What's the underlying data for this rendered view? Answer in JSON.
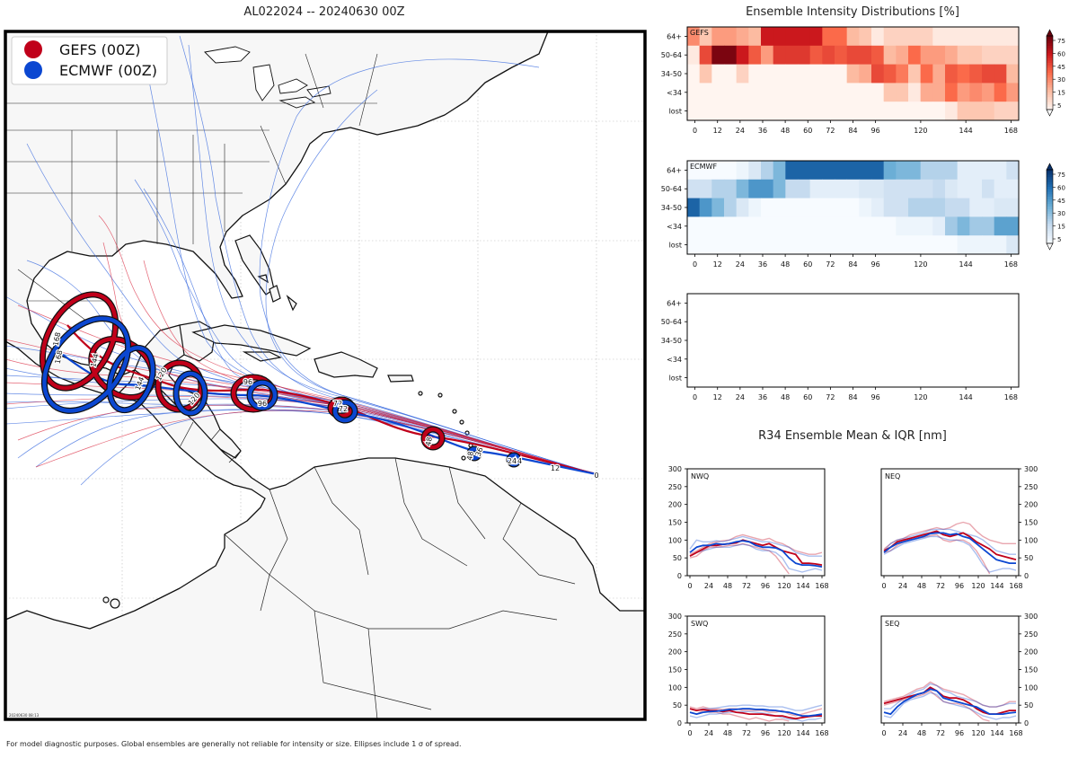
{
  "figure": {
    "title": "AL022024 -- 20240630 00Z",
    "footnote": "For model diagnostic purposes. Global ensembles are generally not reliable for intensity or size. Ellipses include 1 σ of spread.",
    "timestamp": "20240630 08:13"
  },
  "colors": {
    "gefs": "#c0001a",
    "ecmwf": "#0b47d1",
    "land": "#f7f7f7",
    "ocean": "#ffffff"
  },
  "chart_data": [
    {
      "id": "track-map",
      "type": "map",
      "legend": [
        {
          "label": "GEFS (00Z)",
          "color": "#c0001a"
        },
        {
          "label": "ECMWF (00Z)",
          "color": "#0b47d1"
        }
      ],
      "legend_position": "top-left",
      "gefs_mean_labels": [
        {
          "hour": "0"
        },
        {
          "hour": "24"
        },
        {
          "hour": "48"
        },
        {
          "hour": "72"
        },
        {
          "hour": "96"
        },
        {
          "hour": "120"
        },
        {
          "hour": "144"
        },
        {
          "hour": "168"
        }
      ],
      "ecmwf_mean_labels": [
        {
          "hour": "0"
        },
        {
          "hour": "12"
        },
        {
          "hour": "24"
        },
        {
          "hour": "36"
        },
        {
          "hour": "48"
        },
        {
          "hour": "72"
        },
        {
          "hour": "96"
        },
        {
          "hour": "120"
        },
        {
          "hour": "144"
        },
        {
          "hour": "168"
        }
      ]
    },
    {
      "id": "intensity-distributions",
      "type": "heatmap",
      "title": "Ensemble Intensity Distributions [%]",
      "x_ticks": [
        "0",
        "12",
        "24",
        "36",
        "48",
        "60",
        "72",
        "84",
        "96",
        "120",
        "144",
        "168"
      ],
      "rows": [
        "64+",
        "50-64",
        "34-50",
        "<34",
        "lost"
      ],
      "colorbar_ticks": [
        "75",
        "60",
        "45",
        "30",
        "15",
        "5"
      ],
      "panels": [
        {
          "name": "GEFS",
          "cmap": "reds",
          "grid": [
            [
              40,
              20,
              35,
              35,
              30,
              25,
              75,
              75,
              75,
              75,
              75,
              50,
              50,
              25,
              20,
              5,
              15,
              15,
              15,
              15,
              5,
              5,
              5,
              5,
              5,
              5,
              5
            ],
            [
              5,
              60,
              95,
              95,
              75,
              55,
              35,
              65,
              65,
              65,
              55,
              60,
              55,
              60,
              60,
              55,
              25,
              30,
              50,
              35,
              35,
              30,
              20,
              20,
              15,
              15,
              15
            ],
            [
              0,
              20,
              0,
              0,
              15,
              0,
              0,
              0,
              0,
              0,
              0,
              0,
              0,
              25,
              30,
              60,
              55,
              45,
              20,
              50,
              30,
              55,
              50,
              55,
              60,
              60,
              25
            ],
            [
              0,
              0,
              0,
              0,
              0,
              0,
              0,
              0,
              0,
              0,
              0,
              0,
              0,
              0,
              0,
              0,
              20,
              20,
              5,
              30,
              30,
              50,
              35,
              40,
              35,
              50,
              35
            ],
            [
              0,
              0,
              0,
              0,
              0,
              0,
              0,
              0,
              0,
              0,
              0,
              0,
              0,
              0,
              0,
              0,
              0,
              0,
              0,
              0,
              0,
              5,
              20,
              20,
              20,
              15,
              15
            ]
          ]
        },
        {
          "name": "ECMWF",
          "cmap": "blues",
          "grid": [
            [
              0,
              0,
              0,
              0,
              5,
              15,
              30,
              45,
              80,
              80,
              80,
              80,
              80,
              80,
              80,
              80,
              50,
              45,
              45,
              30,
              30,
              30,
              10,
              10,
              10,
              10,
              20
            ],
            [
              20,
              20,
              30,
              30,
              45,
              60,
              60,
              45,
              25,
              25,
              10,
              10,
              10,
              10,
              15,
              15,
              20,
              20,
              20,
              20,
              25,
              15,
              10,
              10,
              20,
              10,
              10
            ],
            [
              80,
              60,
              45,
              30,
              15,
              5,
              0,
              0,
              0,
              0,
              0,
              0,
              0,
              0,
              5,
              10,
              20,
              20,
              30,
              30,
              30,
              25,
              25,
              10,
              10,
              15,
              15
            ],
            [
              0,
              0,
              0,
              0,
              0,
              0,
              0,
              0,
              0,
              0,
              0,
              0,
              0,
              0,
              0,
              0,
              0,
              5,
              5,
              5,
              10,
              35,
              45,
              35,
              35,
              55,
              55
            ],
            [
              0,
              0,
              0,
              0,
              0,
              0,
              0,
              0,
              0,
              0,
              0,
              0,
              0,
              0,
              0,
              0,
              0,
              0,
              0,
              0,
              0,
              0,
              5,
              5,
              5,
              5,
              15
            ]
          ]
        },
        {
          "name": "",
          "cmap": "none",
          "grid": []
        }
      ]
    },
    {
      "id": "r34",
      "type": "line",
      "title": "R34 Ensemble Mean & IQR [nm]",
      "x_ticks": [
        "0",
        "24",
        "48",
        "72",
        "96",
        "120",
        "144",
        "168"
      ],
      "y_ticks": [
        "0",
        "50",
        "100",
        "150",
        "200",
        "250",
        "300"
      ],
      "ylim": [
        0,
        300
      ],
      "xlim": [
        0,
        168
      ],
      "panels": [
        {
          "name": "NWQ",
          "gefs_mean": [
            55,
            65,
            75,
            85,
            85,
            88,
            90,
            92,
            100,
            95,
            90,
            85,
            90,
            80,
            70,
            65,
            60,
            35,
            35,
            33,
            30
          ],
          "gefs_q1": [
            50,
            55,
            70,
            80,
            80,
            82,
            85,
            85,
            90,
            85,
            80,
            75,
            70,
            55,
            30,
            5,
            null,
            null,
            null,
            null,
            null
          ],
          "gefs_q3": [
            60,
            70,
            80,
            90,
            95,
            98,
            100,
            110,
            115,
            110,
            105,
            100,
            105,
            95,
            90,
            80,
            70,
            65,
            60,
            60,
            65
          ],
          "ecmwf_mean": [
            65,
            80,
            85,
            85,
            90,
            88,
            90,
            95,
            98,
            95,
            85,
            80,
            80,
            78,
            70,
            50,
            35,
            30,
            30,
            28,
            25
          ],
          "ecmwf_q1": [
            55,
            65,
            70,
            75,
            80,
            80,
            80,
            85,
            88,
            85,
            75,
            70,
            70,
            65,
            50,
            20,
            15,
            10,
            15,
            20,
            15
          ],
          "ecmwf_q3": [
            75,
            100,
            95,
            95,
            98,
            95,
            100,
            105,
            110,
            105,
            100,
            95,
            95,
            90,
            85,
            80,
            65,
            60,
            55,
            55,
            55
          ]
        },
        {
          "name": "NEQ",
          "gefs_mean": [
            70,
            80,
            95,
            100,
            105,
            110,
            115,
            120,
            125,
            115,
            110,
            115,
            120,
            110,
            95,
            85,
            75,
            60,
            55,
            50,
            45
          ],
          "gefs_q1": [
            65,
            70,
            85,
            95,
            100,
            105,
            108,
            112,
            115,
            100,
            95,
            100,
            100,
            90,
            70,
            40,
            5,
            null,
            null,
            null,
            null
          ],
          "gefs_q3": [
            75,
            90,
            100,
            105,
            115,
            120,
            125,
            130,
            135,
            130,
            135,
            145,
            150,
            145,
            125,
            110,
            100,
            95,
            90,
            90,
            90
          ],
          "ecmwf_mean": [
            65,
            80,
            90,
            95,
            100,
            105,
            110,
            118,
            120,
            120,
            115,
            118,
            110,
            105,
            90,
            75,
            60,
            45,
            40,
            35,
            35
          ],
          "ecmwf_q1": [
            60,
            70,
            80,
            90,
            95,
            100,
            105,
            110,
            110,
            105,
            100,
            100,
            95,
            85,
            60,
            30,
            10,
            15,
            20,
            20,
            15
          ],
          "ecmwf_q3": [
            70,
            90,
            100,
            105,
            110,
            115,
            120,
            128,
            130,
            130,
            130,
            125,
            120,
            115,
            110,
            100,
            85,
            70,
            65,
            60,
            60
          ]
        },
        {
          "name": "SWQ",
          "gefs_mean": [
            40,
            35,
            38,
            35,
            35,
            32,
            35,
            30,
            28,
            25,
            25,
            25,
            22,
            20,
            20,
            15,
            12,
            15,
            18,
            20,
            20
          ],
          "gefs_q1": [
            30,
            25,
            35,
            30,
            30,
            25,
            25,
            20,
            15,
            10,
            15,
            10,
            5,
            10,
            10,
            5,
            null,
            null,
            null,
            null,
            null
          ],
          "gefs_q3": [
            45,
            40,
            45,
            40,
            40,
            38,
            40,
            40,
            35,
            35,
            35,
            35,
            30,
            30,
            35,
            25,
            20,
            25,
            30,
            35,
            40
          ],
          "ecmwf_mean": [
            30,
            25,
            30,
            32,
            33,
            35,
            38,
            38,
            40,
            40,
            38,
            38,
            36,
            35,
            32,
            30,
            25,
            20,
            20,
            22,
            25
          ],
          "ecmwf_q1": [
            20,
            15,
            20,
            25,
            25,
            28,
            30,
            30,
            32,
            32,
            30,
            28,
            25,
            20,
            15,
            10,
            10,
            5,
            10,
            10,
            15
          ],
          "ecmwf_q3": [
            40,
            35,
            40,
            40,
            42,
            45,
            48,
            48,
            50,
            50,
            48,
            48,
            45,
            45,
            45,
            40,
            35,
            35,
            40,
            45,
            50
          ]
        },
        {
          "name": "SEQ",
          "gefs_mean": [
            55,
            60,
            65,
            70,
            75,
            80,
            85,
            100,
            90,
            75,
            70,
            70,
            65,
            55,
            40,
            30,
            25,
            25,
            30,
            35,
            35
          ],
          "gefs_q1": [
            50,
            55,
            60,
            65,
            70,
            75,
            80,
            90,
            75,
            60,
            55,
            55,
            50,
            40,
            25,
            10,
            5,
            null,
            null,
            null,
            null
          ],
          "gefs_q3": [
            60,
            65,
            70,
            75,
            85,
            95,
            100,
            115,
            105,
            95,
            90,
            85,
            80,
            70,
            60,
            50,
            45,
            45,
            50,
            60,
            60
          ],
          "ecmwf_mean": [
            30,
            25,
            45,
            60,
            70,
            80,
            85,
            95,
            90,
            70,
            65,
            60,
            55,
            50,
            45,
            35,
            25,
            25,
            25,
            28,
            30
          ],
          "ecmwf_q1": [
            20,
            15,
            35,
            55,
            65,
            70,
            75,
            85,
            80,
            60,
            55,
            50,
            45,
            40,
            30,
            20,
            15,
            10,
            15,
            15,
            20
          ],
          "ecmwf_q3": [
            40,
            40,
            55,
            70,
            80,
            90,
            95,
            110,
            105,
            90,
            85,
            75,
            70,
            65,
            60,
            50,
            45,
            45,
            50,
            55,
            55
          ]
        }
      ]
    }
  ]
}
